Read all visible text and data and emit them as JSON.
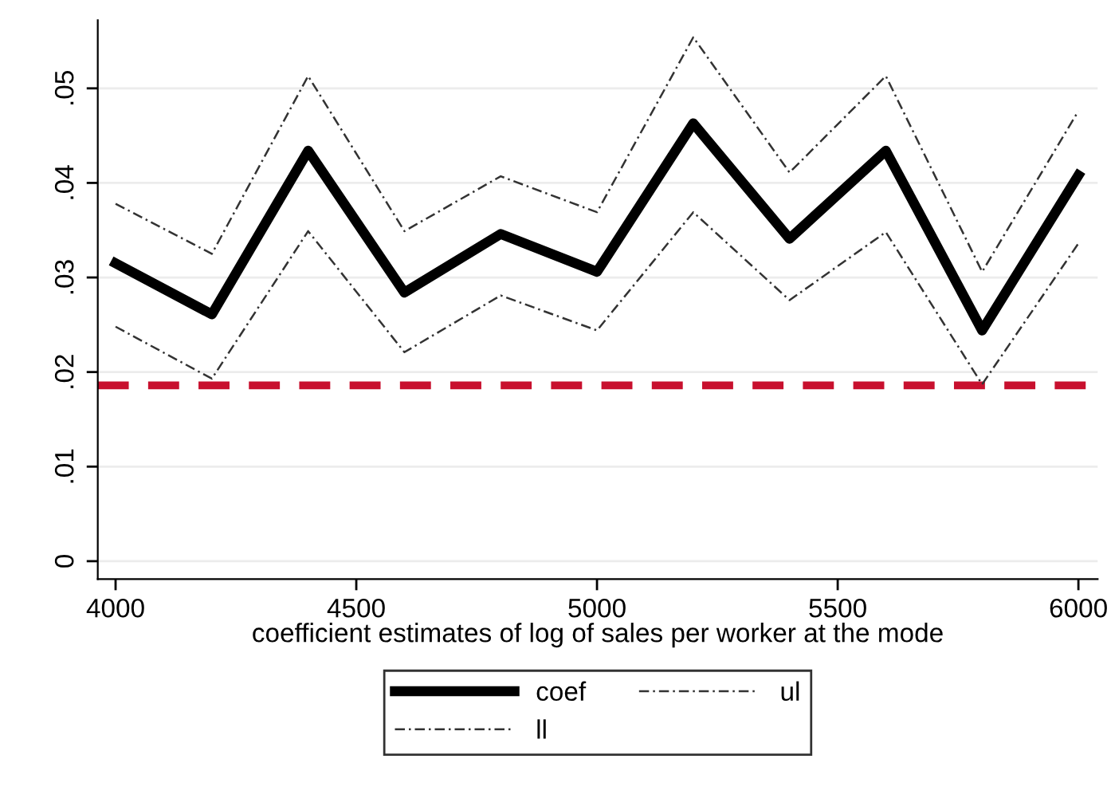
{
  "chart_data": {
    "type": "line",
    "xlabel": "coefficient estimates of log of sales per worker at the mode",
    "x": [
      4000,
      4200,
      4400,
      4600,
      4800,
      5000,
      5200,
      5400,
      5600,
      5800,
      6000
    ],
    "series": [
      {
        "name": "coef",
        "color": "#000000",
        "line_style": "solid",
        "values": [
          0.0315,
          0.0261,
          0.0434,
          0.0284,
          0.0346,
          0.0306,
          0.0463,
          0.0341,
          0.0434,
          0.0244,
          0.0408
        ]
      },
      {
        "name": "ll",
        "color": "#333333",
        "line_style": "dotted",
        "values": [
          0.0248,
          0.0193,
          0.0349,
          0.0221,
          0.0281,
          0.0244,
          0.0369,
          0.0276,
          0.0348,
          0.0187,
          0.0336
        ]
      },
      {
        "name": "ul",
        "color": "#333333",
        "line_style": "dotted",
        "values": [
          0.0378,
          0.0325,
          0.0513,
          0.0349,
          0.0407,
          0.0369,
          0.0554,
          0.0411,
          0.0513,
          0.0306,
          0.0476
        ]
      }
    ],
    "ref_lines": [
      {
        "axis": "y",
        "value": 0.0186,
        "color": "#c8102e",
        "line_style": "dashed"
      }
    ],
    "xlim": [
      3963,
      6040
    ],
    "xticks": [
      4000,
      4500,
      5000,
      5500,
      6000
    ],
    "ylim": [
      -0.0019,
      0.0572
    ],
    "yticks": [
      0,
      {
        "value": 0.01,
        "label": ".01"
      },
      {
        "value": 0.02,
        "label": ".02"
      },
      {
        "value": 0.03,
        "label": ".03"
      },
      {
        "value": 0.04,
        "label": ".04"
      },
      {
        "value": 0.05,
        "label": ".05"
      }
    ],
    "grid": "y",
    "legend": "bottom",
    "marker": "none"
  }
}
